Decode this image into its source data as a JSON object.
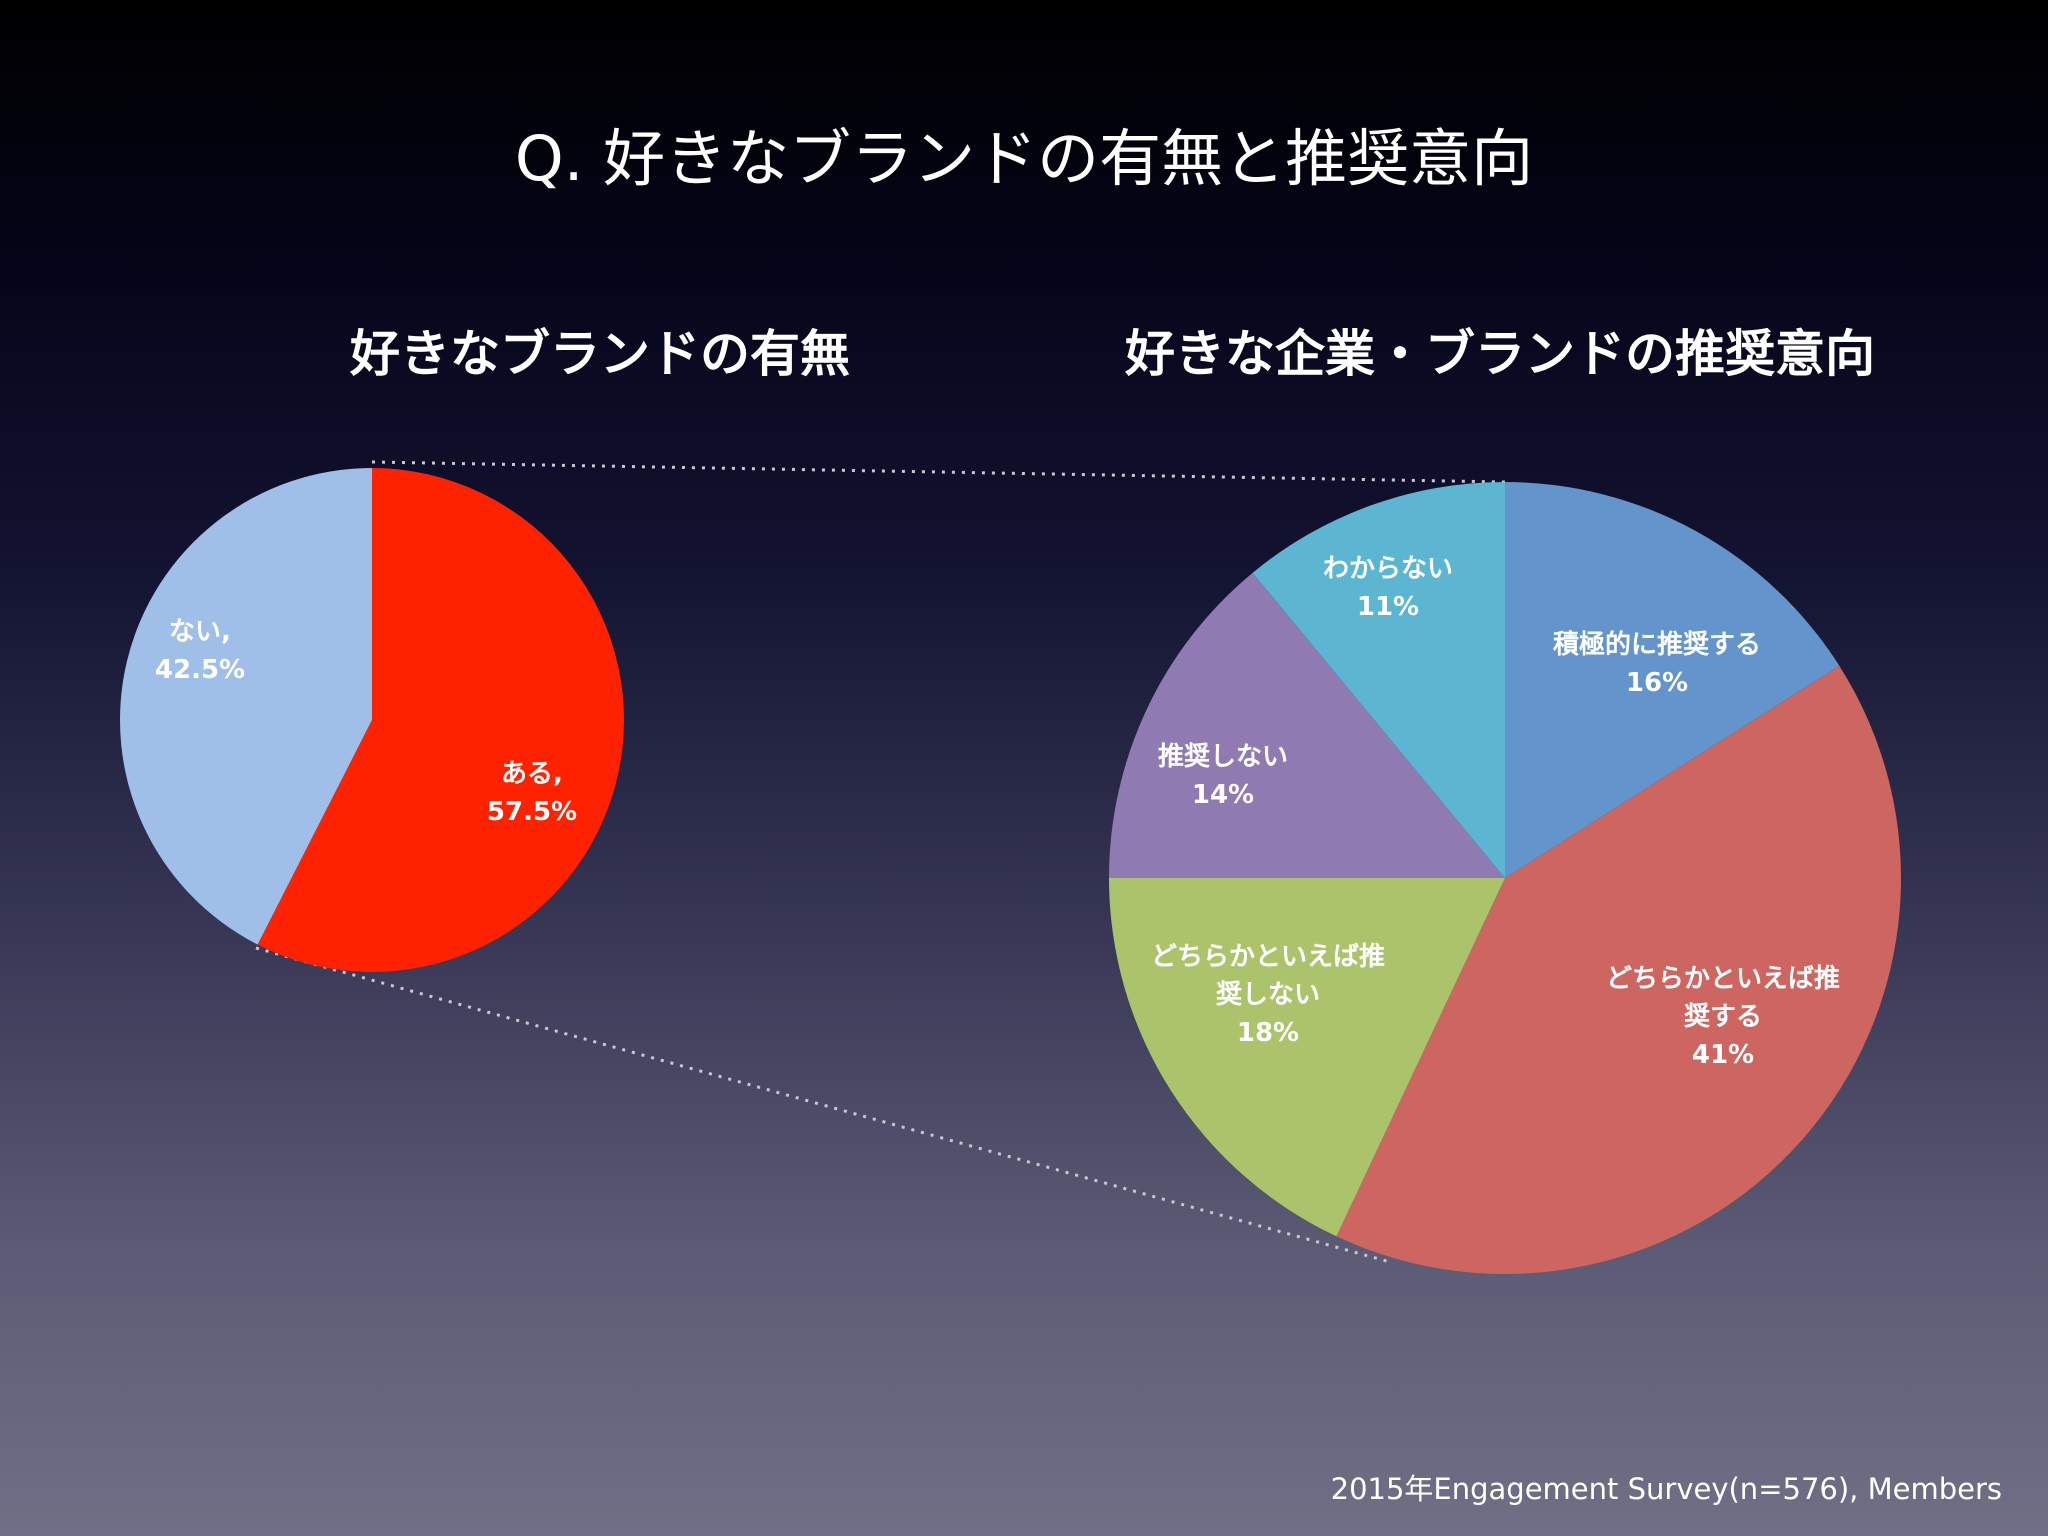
{
  "slide": {
    "title": "Q. 好きなブランドの有無と推奨意向",
    "source": "2015年Engagement Survey(n=576), Members"
  },
  "colors": {
    "red": "#ff2200",
    "light_blue": "#9fbfe8",
    "steel_blue": "#6394cb",
    "salmon": "#cd6660",
    "green": "#abc46c",
    "purple": "#907ab2",
    "cyan": "#5cb6d2"
  },
  "chart_data": [
    {
      "type": "pie",
      "title": "好きなブランドの有無",
      "slices": [
        {
          "label": "ある,",
          "value": 57.5,
          "value_label": "57.5%",
          "color": "#ff2200"
        },
        {
          "label": "ない,",
          "value": 42.5,
          "value_label": "42.5%",
          "color": "#9fbfe8"
        }
      ]
    },
    {
      "type": "pie",
      "title": "好きな企業・ブランドの推奨意向",
      "slices": [
        {
          "label": "積極的に推奨する",
          "value": 16,
          "value_label": "16%",
          "color": "#6394cb"
        },
        {
          "label": "どちらかといえば推|奨する",
          "value": 41,
          "value_label": "41%",
          "color": "#cd6660"
        },
        {
          "label": "どちらかといえば推|奨しない",
          "value": 18,
          "value_label": "18%",
          "color": "#abc46c"
        },
        {
          "label": "推奨しない",
          "value": 14,
          "value_label": "14%",
          "color": "#907ab2"
        },
        {
          "label": "わからない",
          "value": 11,
          "value_label": "11%",
          "color": "#5cb6d2"
        }
      ]
    }
  ]
}
